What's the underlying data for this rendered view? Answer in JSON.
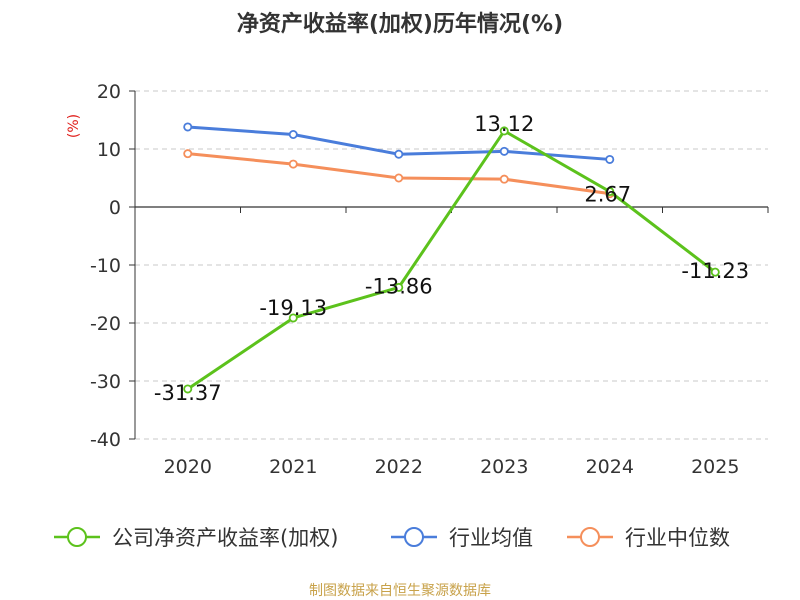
{
  "chart_data": {
    "type": "line",
    "title": "净资产收益率(加权)历年情况(%)",
    "ylabel": "(%)",
    "xlabel": "",
    "categories": [
      "2020",
      "2021",
      "2022",
      "2023",
      "2024",
      "2025"
    ],
    "ylim": [
      -40,
      20
    ],
    "yticks": [
      20,
      10,
      0,
      -10,
      -20,
      -30,
      -40
    ],
    "grid": true,
    "legend_position": "bottom",
    "series": [
      {
        "name": "公司净资产收益率(加权)",
        "color": "#5cc21c",
        "values": [
          -31.37,
          -19.13,
          -13.86,
          13.12,
          2.67,
          -11.23
        ],
        "data_labels": [
          "-31.37",
          "-19.13",
          "-13.86",
          "13.12",
          "2.67",
          "-11.23"
        ]
      },
      {
        "name": "行业均值",
        "color": "#4a7ddb",
        "values": [
          13.8,
          12.5,
          9.1,
          9.6,
          8.2,
          null
        ]
      },
      {
        "name": "行业中位数",
        "color": "#f58f5b",
        "values": [
          9.2,
          7.4,
          5.0,
          4.8,
          2.3,
          null
        ]
      }
    ]
  },
  "source": "制图数据来自恒生聚源数据库"
}
